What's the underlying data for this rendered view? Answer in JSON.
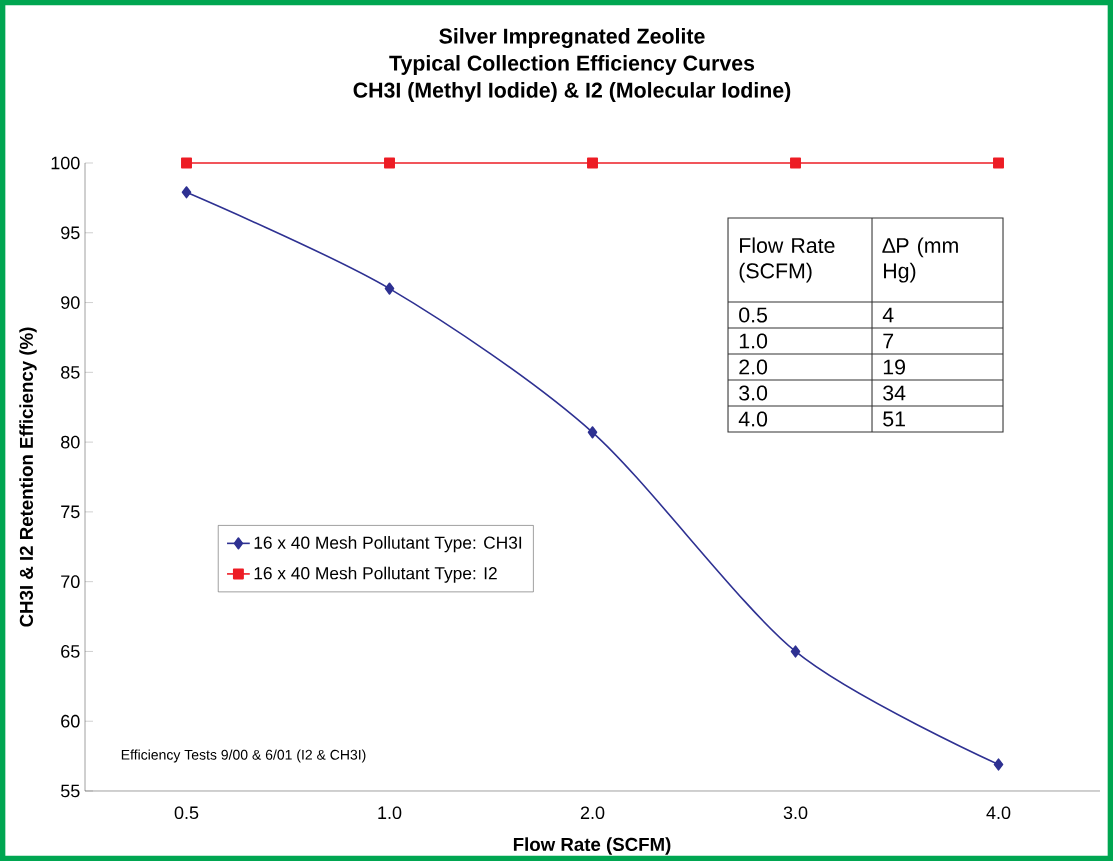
{
  "chart_data": {
    "type": "line",
    "title": "Silver Impregnated Zeolite",
    "subtitle": "Typical Collection Efficiency Curves",
    "xlabel": "Flow Rate (SCFM)",
    "ylabel": "CH3I & I2 Retention Efficiency (%)",
    "categories": [
      "0.5",
      "1.0",
      "2.0",
      "3.0",
      "4.0"
    ],
    "series": [
      {
        "name": "16 x 40 Mesh Pollutant Type: CH3I",
        "color": "#2e3192",
        "marker": "diamond",
        "values": [
          97.9,
          91.0,
          80.7,
          65.0,
          56.9
        ]
      },
      {
        "name": "16 x 40 Mesh Pollutant Type: I2",
        "color": "#ed1c24",
        "marker": "square",
        "values": [
          100,
          100,
          100,
          100,
          100
        ]
      }
    ],
    "ylim": [
      55,
      100
    ],
    "yticks": [
      55,
      60,
      65,
      70,
      75,
      80,
      85,
      90,
      95,
      100
    ],
    "grid": false,
    "legend": "left",
    "line_style": "solid",
    "annotations": [
      "CH3I (Methyl Iodide) & I2 (Molecular Iodine)",
      "Efficiency Tests 9/00 & 6/01 (I2 & CH3I)",
      "Flow Rate (SCFM)",
      "∆P (mm Hg)",
      "0.5",
      "4",
      "1.0",
      "7",
      "2.0",
      "19",
      "3.0",
      "34",
      "4.0",
      "51"
    ]
  }
}
